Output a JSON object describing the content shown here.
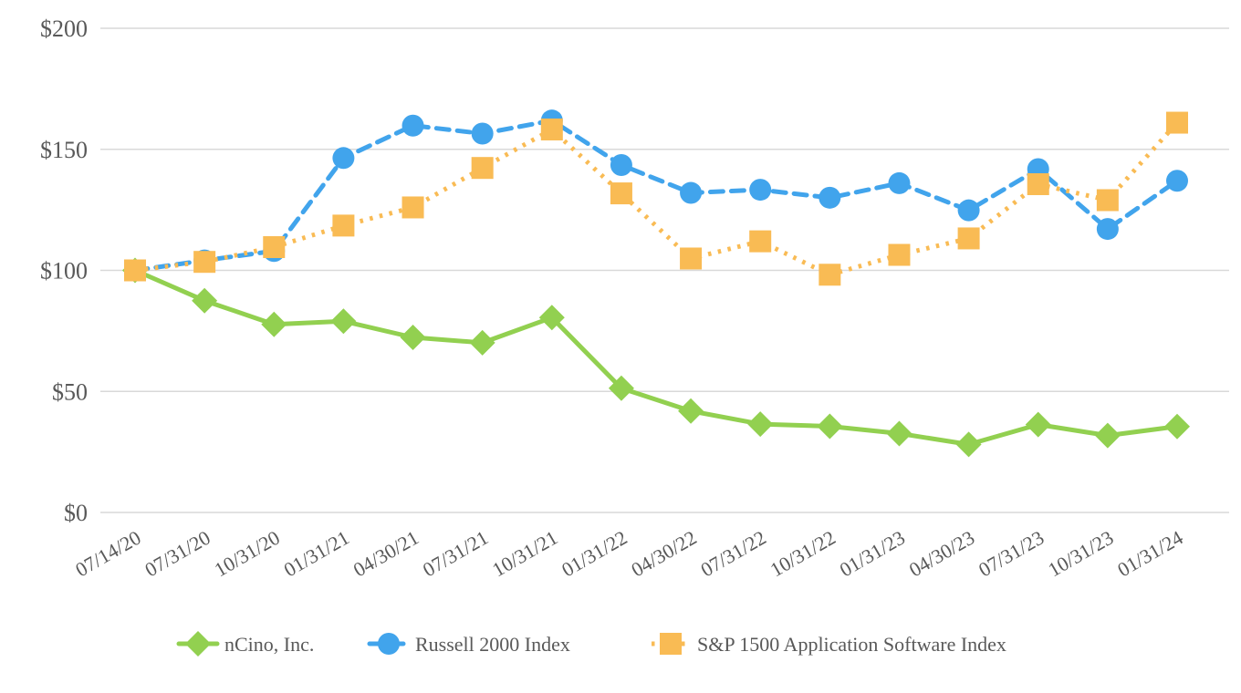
{
  "chart_data": {
    "type": "line",
    "title": "",
    "xlabel": "",
    "ylabel": "",
    "x_categories": [
      "07/14/20",
      "07/31/20",
      "10/31/20",
      "01/31/21",
      "04/30/21",
      "07/31/21",
      "10/31/21",
      "01/31/22",
      "04/30/22",
      "07/31/22",
      "10/31/22",
      "01/31/23",
      "04/30/23",
      "07/31/23",
      "10/31/23",
      "01/31/24"
    ],
    "series": [
      {
        "name": "nCino, Inc.",
        "color": "#92D050",
        "marker": "diamond",
        "line_style": "solid",
        "values": [
          100.0,
          87.5,
          77.7,
          79.0,
          72.3,
          70.1,
          80.5,
          51.3,
          41.9,
          36.5,
          35.6,
          32.6,
          28.1,
          36.3,
          31.8,
          35.5
        ]
      },
      {
        "name": "Russell 2000 Index",
        "color": "#41A4EC",
        "marker": "circle",
        "line_style": "dashed",
        "values": [
          100.0,
          104.1,
          108.0,
          146.4,
          159.8,
          156.5,
          161.9,
          143.5,
          132.0,
          133.3,
          130.0,
          136.0,
          124.8,
          141.8,
          117.1,
          137.0
        ]
      },
      {
        "name": "S&P 1500 Application Software Index",
        "color": "#F9BB54",
        "marker": "square",
        "line_style": "dotted",
        "values": [
          100.0,
          103.5,
          109.6,
          118.5,
          126.0,
          142.3,
          158.2,
          131.8,
          104.9,
          112.0,
          98.2,
          106.4,
          113.2,
          135.6,
          129.0,
          161.0
        ]
      }
    ],
    "y_axis": {
      "range": [
        0,
        200
      ],
      "ticks": [
        {
          "value": 0,
          "label": "$0"
        },
        {
          "value": 50,
          "label": "$50"
        },
        {
          "value": 100,
          "label": "$100"
        },
        {
          "value": 150,
          "label": "$150"
        },
        {
          "value": 200,
          "label": "$200"
        }
      ],
      "grid": true
    },
    "legend_position": "bottom",
    "colors": {
      "background": "#FFFFFF",
      "gridline": "#D9D9D9",
      "axis_text": "#595959"
    }
  }
}
